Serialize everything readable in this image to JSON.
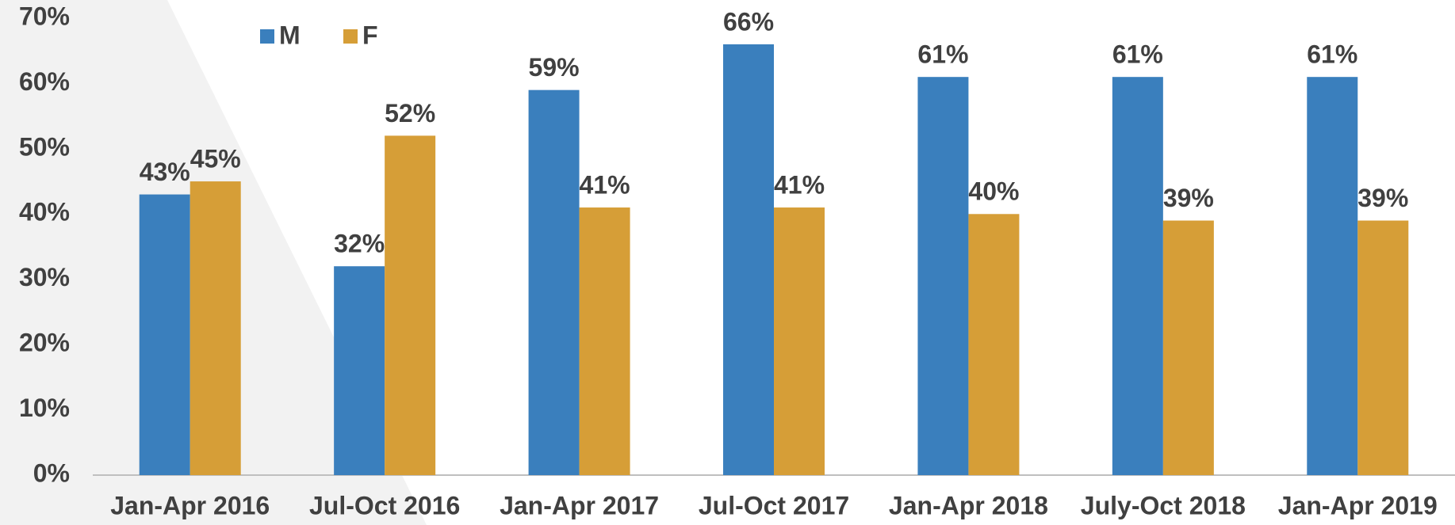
{
  "chart_data": {
    "type": "bar",
    "categories": [
      "Jan-Apr 2016",
      "Jul-Oct 2016",
      "Jan-Apr 2017",
      "Jul-Oct 2017",
      "Jan-Apr 2018",
      "July-Oct 2018",
      "Jan-Apr 2019"
    ],
    "series": [
      {
        "name": "M",
        "color": "#3a7fbd",
        "values": [
          43,
          32,
          59,
          66,
          61,
          61,
          61
        ],
        "value_labels": [
          "43%",
          "32%",
          "59%",
          "66%",
          "61%",
          "61%",
          "61%"
        ]
      },
      {
        "name": "F",
        "color": "#d69e37",
        "values": [
          45,
          52,
          41,
          41,
          40,
          39,
          39
        ],
        "value_labels": [
          "45%",
          "52%",
          "41%",
          "41%",
          "40%",
          "39%",
          "39%"
        ]
      }
    ],
    "ylim": [
      0,
      70
    ],
    "yticks": [
      {
        "value": 0,
        "label": "0%"
      },
      {
        "value": 10,
        "label": "10%"
      },
      {
        "value": 20,
        "label": "20%"
      },
      {
        "value": 30,
        "label": "30%"
      },
      {
        "value": 40,
        "label": "40%"
      },
      {
        "value": 50,
        "label": "50%"
      },
      {
        "value": 60,
        "label": "60%"
      },
      {
        "value": 70,
        "label": "70%"
      }
    ],
    "legend": "top-left"
  }
}
